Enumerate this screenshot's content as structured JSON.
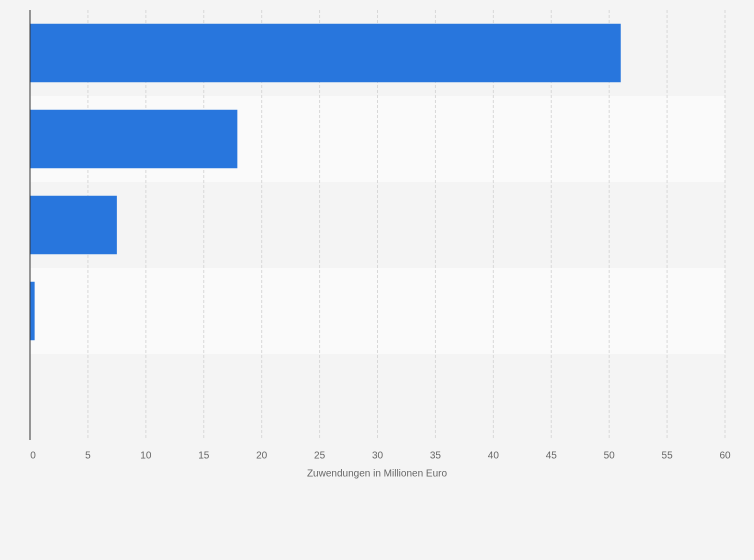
{
  "chart_data": {
    "type": "bar",
    "orientation": "horizontal",
    "categories": [
      null,
      null,
      null,
      null,
      null
    ],
    "values": [
      51,
      17.9,
      7.5,
      0.4,
      0
    ],
    "color": "#2876dd",
    "xlabel": "Zuwendungen in Millionen Euro",
    "xlim": [
      0,
      60
    ],
    "xticks": [
      0,
      5,
      10,
      15,
      20,
      25,
      30,
      35,
      40,
      45,
      50,
      55,
      60
    ],
    "grid": true
  }
}
